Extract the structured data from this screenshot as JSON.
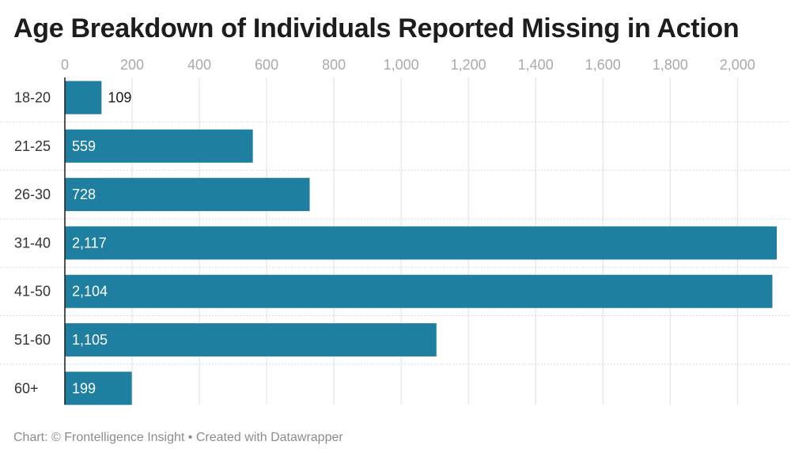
{
  "title": "Age Breakdown of Individuals Reported Missing in Action",
  "footer": "Chart: © Frontelligence Insight • Created with Datawrapper",
  "colors": {
    "bar": "#1f7fa0",
    "label_inside": "#ffffff",
    "label_outside": "#1a1a1a",
    "gridline": "#e0e0e0",
    "separator": "#cccccc",
    "baseline": "#1a1a1a",
    "tick_text": "#aaaaaa",
    "category_text": "#333333"
  },
  "chart_data": {
    "type": "bar",
    "orientation": "horizontal",
    "categories": [
      "18-20",
      "21-25",
      "26-30",
      "31-40",
      "41-50",
      "51-60",
      "60+"
    ],
    "values": [
      109,
      559,
      728,
      2117,
      2104,
      1105,
      199
    ],
    "value_labels": [
      "109",
      "559",
      "728",
      "2,117",
      "2,104",
      "1,105",
      "199"
    ],
    "x_ticks": [
      0,
      200,
      400,
      600,
      800,
      1000,
      1200,
      1400,
      1600,
      1800,
      2000
    ],
    "x_tick_labels": [
      "0",
      "200",
      "400",
      "600",
      "800",
      "1,000",
      "1,200",
      "1,400",
      "1,600",
      "1,800",
      "2,000"
    ],
    "xlim": [
      0,
      2117
    ],
    "x_axis_position": "top",
    "grid": true,
    "legend": "none"
  }
}
